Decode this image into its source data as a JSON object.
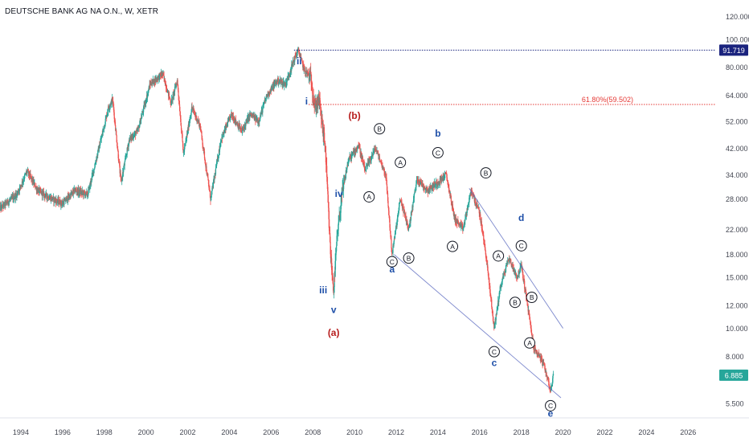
{
  "chart_data": {
    "type": "candlestick",
    "title": "DEUTSCHE BANK AG NA O.N., W, XETR",
    "y_scale": "log",
    "ylim": [
      4.9,
      125
    ],
    "xlim": [
      1993.0,
      2027.3
    ],
    "y_ticks": [
      "120.000",
      "100.000",
      "80.000",
      "64.000",
      "52.000",
      "42.000",
      "34.000",
      "28.000",
      "22.000",
      "18.000",
      "15.000",
      "12.000",
      "10.000",
      "8.000",
      "5.500"
    ],
    "x_ticks": [
      "1994",
      "1996",
      "1998",
      "2000",
      "2002",
      "2004",
      "2006",
      "2008",
      "2010",
      "2012",
      "2014",
      "2016",
      "2018",
      "2020",
      "2022",
      "2024",
      "2026"
    ],
    "colors": {
      "up": "#26a69a",
      "down": "#ef5350",
      "wave_red": "#b71c1c",
      "wave_blue": "#1e4fa8",
      "channel": "#5c6bc0"
    },
    "price_path": [
      [
        1993.0,
        26.0
      ],
      [
        1993.8,
        29.0
      ],
      [
        1994.3,
        35.0
      ],
      [
        1994.8,
        30.0
      ],
      [
        1995.3,
        28.5
      ],
      [
        1996.0,
        27.0
      ],
      [
        1996.6,
        30.0
      ],
      [
        1997.2,
        29.0
      ],
      [
        1997.6,
        38.0
      ],
      [
        1998.2,
        58.0
      ],
      [
        1998.4,
        62.0
      ],
      [
        1998.8,
        32.0
      ],
      [
        1999.2,
        45.0
      ],
      [
        1999.6,
        48.0
      ],
      [
        2000.2,
        70.0
      ],
      [
        2000.8,
        76.0
      ],
      [
        2001.2,
        60.0
      ],
      [
        2001.5,
        72.0
      ],
      [
        2001.8,
        40.0
      ],
      [
        2002.2,
        58.0
      ],
      [
        2002.6,
        50.0
      ],
      [
        2003.1,
        28.0
      ],
      [
        2003.6,
        45.0
      ],
      [
        2004.1,
        55.0
      ],
      [
        2004.6,
        48.0
      ],
      [
        2005.0,
        55.0
      ],
      [
        2005.4,
        52.0
      ],
      [
        2005.8,
        64.0
      ],
      [
        2006.3,
        72.0
      ],
      [
        2006.7,
        70.0
      ],
      [
        2007.1,
        85.0
      ],
      [
        2007.3,
        91.7
      ],
      [
        2007.6,
        78.0
      ],
      [
        2007.9,
        74.0
      ],
      [
        2008.1,
        58.0
      ],
      [
        2008.3,
        62.0
      ],
      [
        2008.6,
        42.0
      ],
      [
        2008.85,
        18.0
      ],
      [
        2009.0,
        13.5
      ],
      [
        2009.15,
        20.0
      ],
      [
        2009.4,
        29.0
      ],
      [
        2009.7,
        38.0
      ],
      [
        2010.2,
        43.0
      ],
      [
        2010.5,
        35.0
      ],
      [
        2011.0,
        42.0
      ],
      [
        2011.5,
        34.0
      ],
      [
        2011.8,
        18.0
      ],
      [
        2012.2,
        28.0
      ],
      [
        2012.6,
        22.0
      ],
      [
        2013.0,
        33.0
      ],
      [
        2013.5,
        30.0
      ],
      [
        2014.0,
        32.0
      ],
      [
        2014.4,
        34.0
      ],
      [
        2014.8,
        24.0
      ],
      [
        2015.2,
        22.0
      ],
      [
        2015.6,
        30.0
      ],
      [
        2016.0,
        25.0
      ],
      [
        2016.3,
        18.0
      ],
      [
        2016.7,
        10.0
      ],
      [
        2017.0,
        14.0
      ],
      [
        2017.4,
        17.5
      ],
      [
        2017.8,
        15.0
      ],
      [
        2018.0,
        16.5
      ],
      [
        2018.3,
        12.0
      ],
      [
        2018.6,
        8.5
      ],
      [
        2018.9,
        8.0
      ],
      [
        2019.2,
        7.0
      ],
      [
        2019.4,
        6.1
      ],
      [
        2019.55,
        6.9
      ]
    ],
    "markers": {
      "last_price": "6.885",
      "high_price": "91.719",
      "fib_label": "61.80%(59.502)",
      "fib_level": 59.502
    },
    "wave_labels": [
      {
        "text": "ii",
        "x": 2007.35,
        "y": 82,
        "color": "blue"
      },
      {
        "text": "i",
        "x": 2007.7,
        "y": 59.5,
        "color": "blue"
      },
      {
        "text": "(b)",
        "x": 2010.0,
        "y": 53,
        "color": "red"
      },
      {
        "text": "iv",
        "x": 2009.25,
        "y": 28.5,
        "color": "blue"
      },
      {
        "text": "iii",
        "x": 2008.5,
        "y": 13.2,
        "color": "blue"
      },
      {
        "text": "v",
        "x": 2009.0,
        "y": 11.3,
        "color": "blue"
      },
      {
        "text": "(a)",
        "x": 2009.0,
        "y": 9.4,
        "color": "red"
      },
      {
        "text": "b",
        "x": 2014.0,
        "y": 46,
        "color": "blue"
      },
      {
        "text": "a",
        "x": 2011.8,
        "y": 15.6,
        "color": "blue"
      },
      {
        "text": "d",
        "x": 2018.0,
        "y": 23.5,
        "color": "blue"
      },
      {
        "text": "c",
        "x": 2016.7,
        "y": 7.4,
        "color": "blue"
      },
      {
        "text": "e",
        "x": 2019.4,
        "y": 4.95,
        "color": "blue"
      }
    ],
    "circle_labels": [
      {
        "text": "B",
        "x": 2011.2,
        "y": 49
      },
      {
        "text": "A",
        "x": 2010.7,
        "y": 28.5
      },
      {
        "text": "A",
        "x": 2012.2,
        "y": 37.5
      },
      {
        "text": "C",
        "x": 2011.8,
        "y": 17.0
      },
      {
        "text": "B",
        "x": 2012.6,
        "y": 17.5
      },
      {
        "text": "C",
        "x": 2014.0,
        "y": 40.5
      },
      {
        "text": "A",
        "x": 2014.7,
        "y": 19.2
      },
      {
        "text": "B",
        "x": 2016.3,
        "y": 34.5
      },
      {
        "text": "A",
        "x": 2016.9,
        "y": 17.8
      },
      {
        "text": "C",
        "x": 2018.0,
        "y": 19.3
      },
      {
        "text": "C",
        "x": 2016.7,
        "y": 8.3
      },
      {
        "text": "B",
        "x": 2017.7,
        "y": 12.3
      },
      {
        "text": "B",
        "x": 2018.5,
        "y": 12.8
      },
      {
        "text": "A",
        "x": 2018.4,
        "y": 8.9
      },
      {
        "text": "C",
        "x": 2019.4,
        "y": 5.4
      }
    ],
    "trend_lines": [
      {
        "from": [
          2011.9,
          18.0
        ],
        "to": [
          2019.9,
          5.75
        ]
      },
      {
        "from": [
          2015.5,
          30.5
        ],
        "to": [
          2020.0,
          10.0
        ]
      }
    ]
  }
}
